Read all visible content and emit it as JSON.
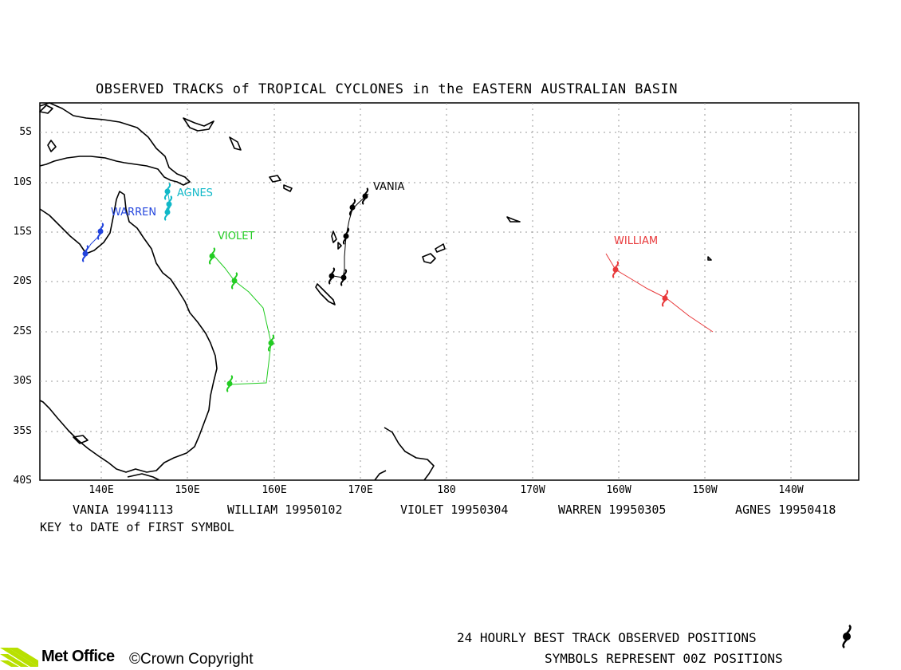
{
  "title": "OBSERVED TRACKS of TROPICAL CYCLONES in the EASTERN AUSTRALIAN BASIN",
  "lat_labels": [
    "5S",
    "10S",
    "15S",
    "20S",
    "25S",
    "30S",
    "35S",
    "40S"
  ],
  "lon_labels": [
    "140E",
    "150E",
    "160E",
    "170E",
    "180",
    "170W",
    "160W",
    "150W",
    "140W"
  ],
  "key": [
    {
      "text": "VANIA 19941113",
      "color": "#000000"
    },
    {
      "text": "WILLIAM 19950102",
      "color": "#000000"
    },
    {
      "text": "VIOLET 19950304",
      "color": "#000000"
    },
    {
      "text": "WARREN 19950305",
      "color": "#000000"
    },
    {
      "text": "AGNES 19950418",
      "color": "#000000"
    }
  ],
  "key_line": "KEY to DATE of FIRST SYMBOL",
  "footer": {
    "logo": "Met Office",
    "copyright": "©Crown Copyright",
    "line1": "24 HOURLY BEST TRACK OBSERVED POSITIONS",
    "line2": "SYMBOLS REPRESENT 00Z POSITIONS"
  },
  "storms": {
    "vania": {
      "name": "VANIA",
      "color": "#000000"
    },
    "william": {
      "name": "WILLIAM",
      "color": "#e8383a"
    },
    "violet": {
      "name": "VIOLET",
      "color": "#22cc22"
    },
    "warren": {
      "name": "WARREN",
      "color": "#2244dd"
    },
    "agnes": {
      "name": "AGNES",
      "color": "#10b8c8"
    }
  }
}
